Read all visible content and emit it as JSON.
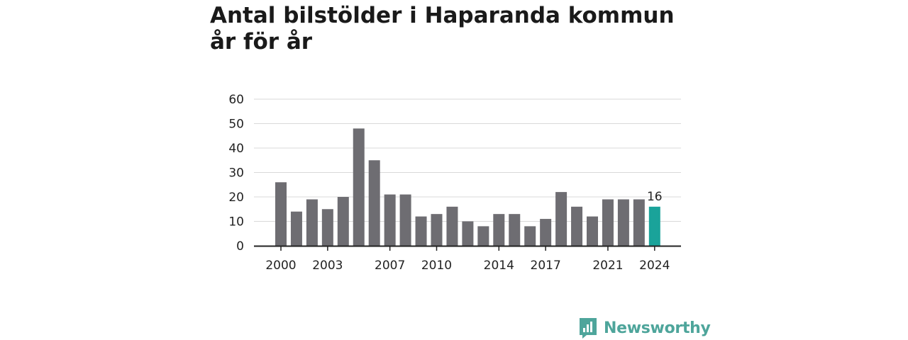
{
  "title_line1": "Antal bilstölder i Haparanda kommun",
  "title_line2": "år för år",
  "brand": "Newsworthy",
  "colors": {
    "bar": "#6e6d72",
    "highlight": "#1aa39a",
    "grid": "#d9d9d9",
    "axis": "#222222",
    "brand": "#4ea59b"
  },
  "chart_data": {
    "type": "bar",
    "title": "Antal bilstölder i Haparanda kommun år för år",
    "categories": [
      2000,
      2001,
      2002,
      2003,
      2004,
      2005,
      2006,
      2007,
      2008,
      2009,
      2010,
      2011,
      2012,
      2013,
      2014,
      2015,
      2016,
      2017,
      2018,
      2019,
      2020,
      2021,
      2022,
      2023,
      2024
    ],
    "values": [
      26,
      14,
      19,
      15,
      20,
      48,
      35,
      21,
      21,
      12,
      13,
      16,
      10,
      8,
      13,
      13,
      8,
      11,
      22,
      16,
      12,
      19,
      19,
      19,
      16
    ],
    "x_tick_labels": [
      "2000",
      "2003",
      "2007",
      "2010",
      "2014",
      "2017",
      "2021",
      "2024"
    ],
    "y_ticks": [
      0,
      10,
      20,
      30,
      40,
      50,
      60
    ],
    "ylim": [
      0,
      60
    ],
    "highlight": {
      "category": 2024,
      "label": "16"
    },
    "grid": true,
    "legend": "none"
  }
}
